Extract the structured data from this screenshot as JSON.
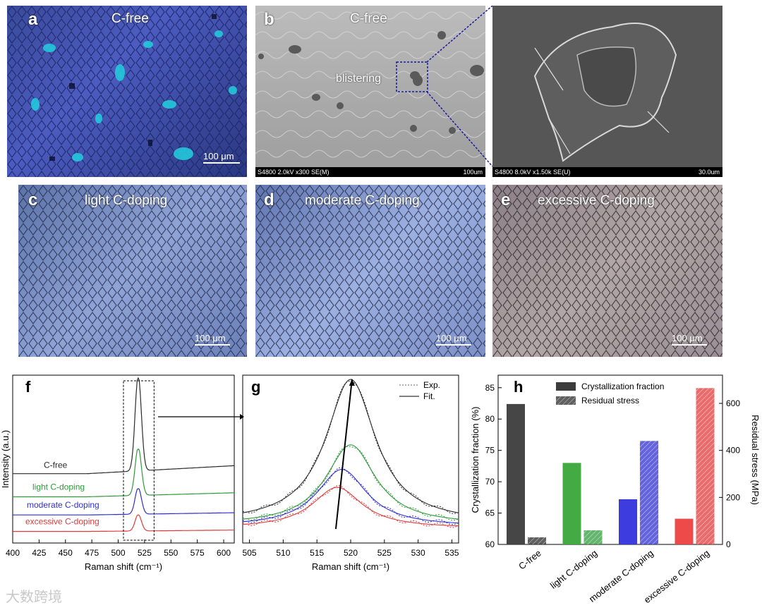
{
  "panels": {
    "a": {
      "letter": "a",
      "title": "C-free",
      "scale": "100 μm"
    },
    "b": {
      "letter": "b",
      "title": "C-free",
      "annotation": "blistering",
      "info": "S4800 2.0kV x300 SE(M)",
      "scale": "100um"
    },
    "b_zoom": {
      "info": "S4800 8.0kV x1.50k SE(U)",
      "scale": "30.0um"
    },
    "c": {
      "letter": "c",
      "title": "light C-doping",
      "scale": "100 μm"
    },
    "d": {
      "letter": "d",
      "title": "moderate C-doping",
      "scale": "100 μm"
    },
    "e": {
      "letter": "e",
      "title": "excessive C-doping",
      "scale": "100 μm"
    }
  },
  "colors": {
    "c_free": "#2b2b2b",
    "light": "#2e9a3a",
    "moderate": "#2f2fd0",
    "excessive": "#e03a3a"
  },
  "chart_data": [
    {
      "panel": "f",
      "type": "line",
      "xlabel": "Raman shift (cm⁻¹)",
      "ylabel": "Intensity (a.u.)",
      "xlim": [
        400,
        610
      ],
      "xticks": [
        400,
        425,
        450,
        475,
        500,
        525,
        550,
        575,
        600
      ],
      "peak_center": 519,
      "series": [
        {
          "name": "C-free",
          "baseline": 0.42,
          "peak": 1.0
        },
        {
          "name": "light C-doping",
          "baseline": 0.28,
          "peak": 0.57
        },
        {
          "name": "moderate C-doping",
          "baseline": 0.17,
          "peak": 0.33
        },
        {
          "name": "excessive C-doping",
          "baseline": 0.07,
          "peak": 0.17
        }
      ]
    },
    {
      "panel": "g",
      "type": "line",
      "xlabel": "Raman shift (cm⁻¹)",
      "xlim": [
        504,
        536
      ],
      "xticks": [
        505,
        510,
        515,
        520,
        525,
        530,
        535
      ],
      "legend": [
        "Exp.",
        "Fit."
      ],
      "series": [
        {
          "name": "C-free",
          "center": 520.0,
          "peak": 1.0,
          "baseline": 0.12
        },
        {
          "name": "light C-doping",
          "center": 520.0,
          "peak": 0.6,
          "baseline": 0.11
        },
        {
          "name": "moderate C-doping",
          "center": 518.7,
          "peak": 0.45,
          "baseline": 0.1
        },
        {
          "name": "excessive C-doping",
          "center": 518.0,
          "peak": 0.34,
          "baseline": 0.09
        }
      ]
    },
    {
      "panel": "h",
      "type": "bar",
      "categories": [
        "C-free",
        "light C-doping",
        "moderate C-doping",
        "excessive C-doping"
      ],
      "series": [
        {
          "name": "Crystallization fraction",
          "values": [
            82.4,
            73.0,
            67.2,
            64.1
          ]
        },
        {
          "name": "Residual stress",
          "values": [
            30,
            60,
            440,
            665
          ]
        }
      ],
      "ylabel": "Crystallization fraction (%)",
      "y2label": "Residual stress (MPa)",
      "ylim": [
        60,
        87
      ],
      "yticks": [
        60,
        65,
        70,
        75,
        80,
        85
      ],
      "y2lim": [
        0,
        720
      ],
      "y2ticks": [
        0,
        200,
        400,
        600
      ]
    }
  ],
  "labels": {
    "f": "f",
    "g": "g",
    "h": "h",
    "series_f": [
      "C-free",
      "light C-doping",
      "moderate C-doping",
      "excessive C-doping"
    ]
  },
  "watermark": "大数跨境"
}
